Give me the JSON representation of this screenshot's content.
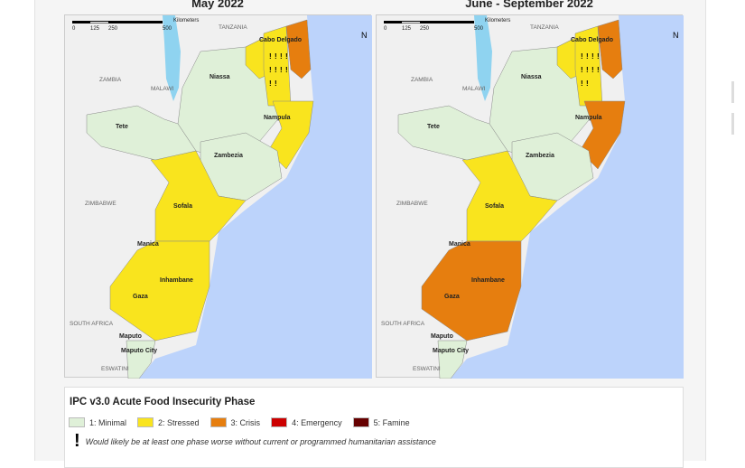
{
  "maps": [
    {
      "title": "May 2022",
      "phases": {
        "north": 1,
        "niassa_east": 2,
        "cabo": 2,
        "cabo_coast": 3,
        "nampula": 2,
        "central": 2,
        "south": 2,
        "tete": 1,
        "zambezia": 1,
        "maputo": 1
      }
    },
    {
      "title": "June - September 2022",
      "phases": {
        "north": 1,
        "niassa_east": 2,
        "cabo": 2,
        "cabo_coast": 3,
        "nampula": 3,
        "central": 2,
        "south": 3,
        "tete": 1,
        "zambezia": 1,
        "maputo": 1
      }
    }
  ],
  "provinces": [
    "Niassa",
    "Cabo Delgado",
    "Nampula",
    "Tete",
    "Zambezia",
    "Sofala",
    "Manica",
    "Inhambane",
    "Gaza",
    "Maputo",
    "Maputo City"
  ],
  "countries": [
    "TANZANIA",
    "ZAMBIA",
    "MALAWI",
    "ZIMBABWE",
    "SOUTH AFRICA",
    "ESWATINI"
  ],
  "scale": {
    "unit": "Kilometers",
    "ticks": [
      "0",
      "125",
      "250",
      "500"
    ]
  },
  "legend": {
    "title": "IPC v3.0 Acute Food Insecurity Phase",
    "phases": [
      {
        "label": "1: Minimal",
        "color": "#dff0d8"
      },
      {
        "label": "2: Stressed",
        "color": "#f9e41e"
      },
      {
        "label": "3: Crisis",
        "color": "#e67e0f"
      },
      {
        "label": "4: Emergency",
        "color": "#cc0000"
      },
      {
        "label": "5: Famine",
        "color": "#660000"
      }
    ],
    "note": "Would likely be at least one phase worse without current or programmed humanitarian assistance"
  },
  "colors": {
    "ocean": "#bcd3fb",
    "lake": "#8fd3f0",
    "land": "#f0f0f0"
  }
}
